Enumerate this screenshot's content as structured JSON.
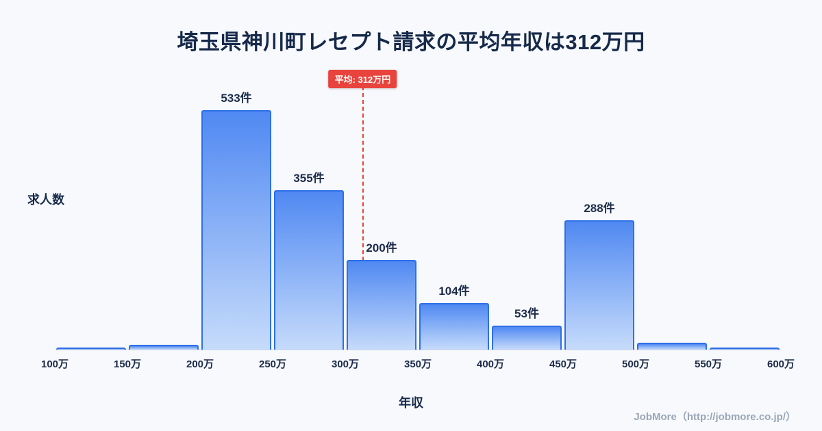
{
  "title": "埼玉県神川町レセプト請求の平均年収は312万円",
  "chart_data": {
    "type": "bar",
    "subtype": "histogram",
    "title": "埼玉県神川町レセプト請求の平均年収は312万円",
    "xlabel": "年収",
    "ylabel": "求人数",
    "x_ticks": [
      "100万",
      "150万",
      "200万",
      "250万",
      "300万",
      "350万",
      "400万",
      "450万",
      "500万",
      "550万",
      "600万"
    ],
    "x_range": [
      100,
      600
    ],
    "bin_size": 50,
    "values": [
      4,
      10,
      533,
      355,
      200,
      104,
      53,
      288,
      15,
      4
    ],
    "bar_labels": [
      "",
      "",
      "533件",
      "355件",
      "200件",
      "104件",
      "53件",
      "288件",
      "",
      ""
    ],
    "ylim": [
      0,
      580
    ],
    "grid": false,
    "legend": "none",
    "average": {
      "value": 312,
      "label": "平均: 312万円"
    },
    "colors": {
      "bar_fill_top": "#5089f2",
      "bar_fill_bottom": "#c6dbfb",
      "bar_border": "#2e6fe8",
      "average_line": "#e8433c",
      "title_text": "#16294a",
      "background": "#f7f9fc"
    }
  },
  "footer": {
    "credit": "JobMore（http://jobmore.co.jp/）"
  }
}
